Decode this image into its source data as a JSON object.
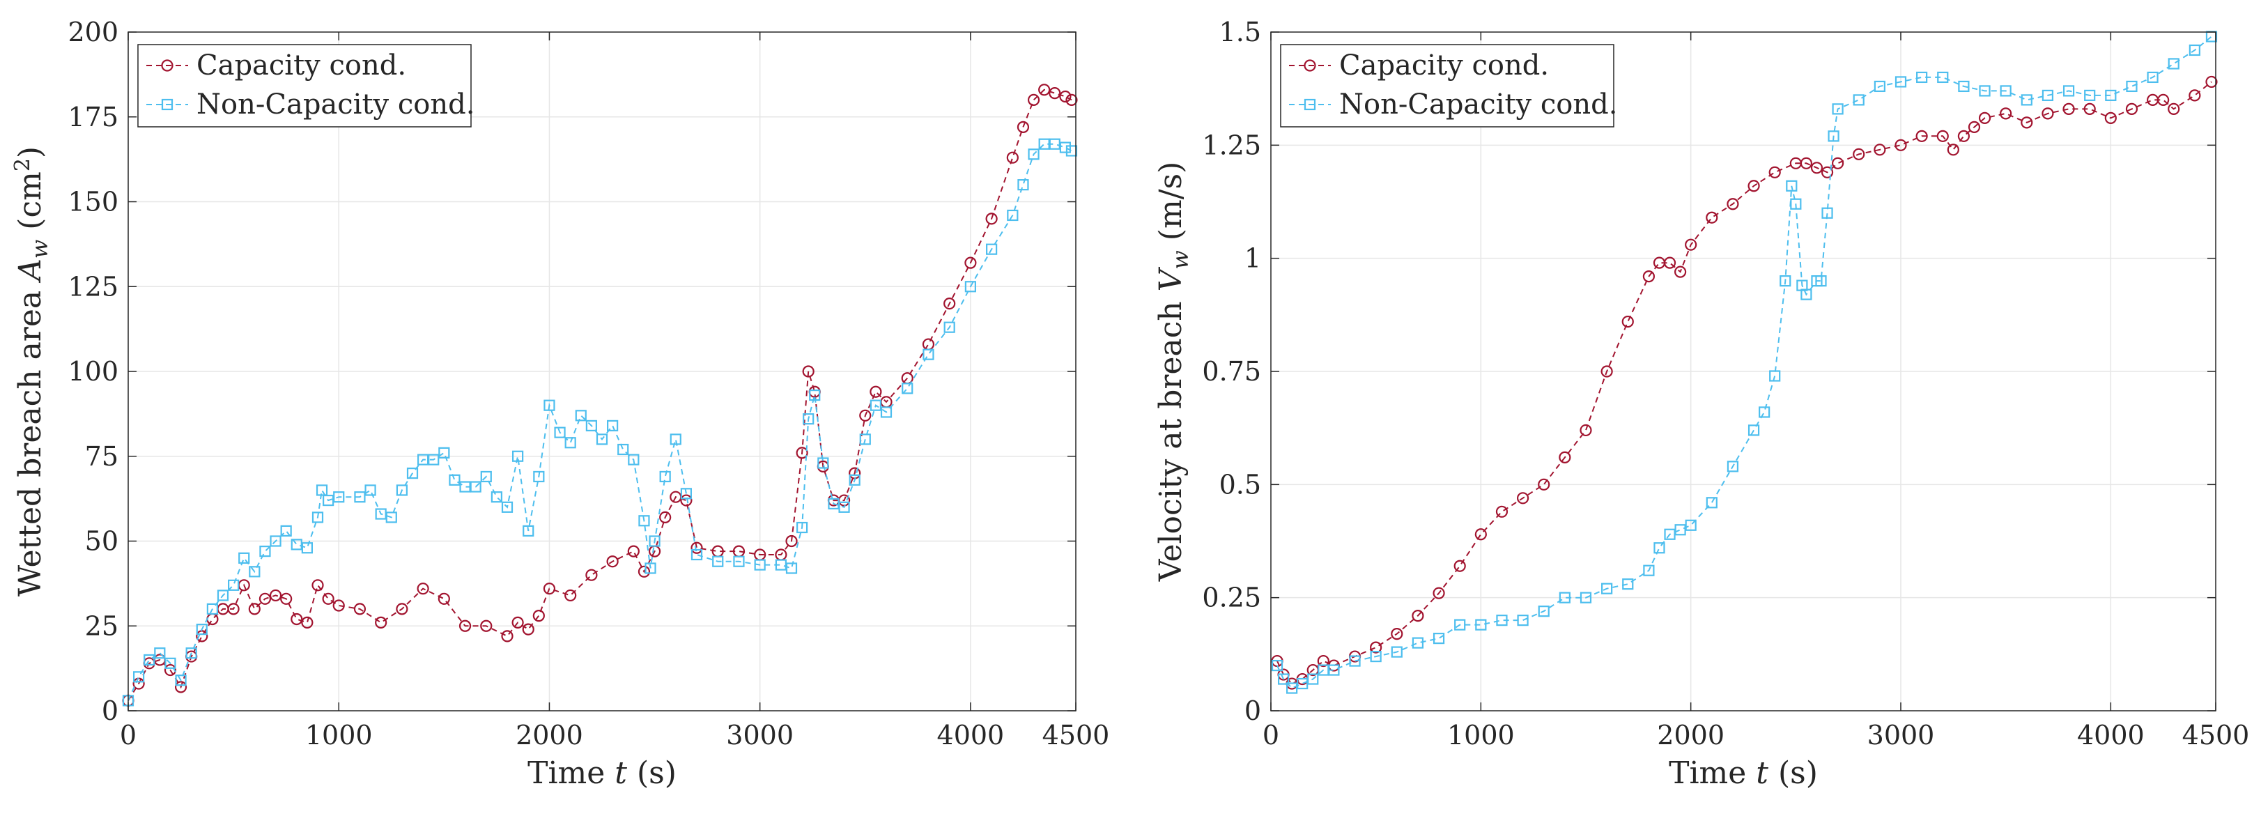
{
  "colors": {
    "capacity": "#a2142f",
    "non_capacity": "#4dbeee",
    "axis": "#262626",
    "grid": "#e6e6e6"
  },
  "chart_data": [
    {
      "type": "line",
      "xlabel": "Time",
      "xlabel_var": "t",
      "xlabel_unit": "(s)",
      "ylabel": "Wetted breach area",
      "ylabel_var": "A",
      "ylabel_sub": "w",
      "ylabel_unit_open": "(cm",
      "ylabel_unit_sup": "2",
      "ylabel_unit_close": ")",
      "xlim": [
        0,
        4500
      ],
      "ylim": [
        0,
        200
      ],
      "xticks": [
        0,
        1000,
        2000,
        3000,
        4000,
        4500
      ],
      "xtick_labels": [
        "0",
        "1000",
        "2000",
        "3000",
        "4000",
        "4500"
      ],
      "yticks": [
        0,
        25,
        50,
        75,
        100,
        125,
        150,
        175,
        200
      ],
      "ytick_labels": [
        "0",
        "25",
        "50",
        "75",
        "100",
        "125",
        "150",
        "175",
        "200"
      ],
      "grid": true,
      "legend_position": "top-left",
      "series": [
        {
          "name": "Capacity cond.",
          "marker": "circle",
          "x": [
            0,
            50,
            100,
            150,
            200,
            250,
            300,
            350,
            400,
            450,
            500,
            550,
            600,
            650,
            700,
            750,
            800,
            850,
            900,
            950,
            1000,
            1100,
            1200,
            1300,
            1400,
            1500,
            1600,
            1700,
            1800,
            1850,
            1900,
            1950,
            2000,
            2100,
            2200,
            2300,
            2400,
            2450,
            2500,
            2550,
            2600,
            2650,
            2700,
            2800,
            2900,
            3000,
            3100,
            3150,
            3200,
            3230,
            3260,
            3300,
            3350,
            3400,
            3450,
            3500,
            3550,
            3600,
            3700,
            3800,
            3900,
            4000,
            4100,
            4200,
            4250,
            4300,
            4350,
            4400,
            4450,
            4480
          ],
          "y": [
            3,
            8,
            14,
            15,
            12,
            7,
            16,
            22,
            27,
            30,
            30,
            37,
            30,
            33,
            34,
            33,
            27,
            26,
            37,
            33,
            31,
            30,
            26,
            30,
            36,
            33,
            25,
            25,
            22,
            26,
            24,
            28,
            36,
            34,
            40,
            44,
            47,
            41,
            47,
            57,
            63,
            62,
            48,
            47,
            47,
            46,
            46,
            50,
            76,
            100,
            94,
            72,
            62,
            62,
            70,
            87,
            94,
            91,
            98,
            108,
            120,
            132,
            145,
            163,
            172,
            180,
            183,
            182,
            181,
            180
          ]
        },
        {
          "name": "Non-Capacity cond.",
          "marker": "square",
          "x": [
            0,
            50,
            100,
            150,
            200,
            250,
            300,
            350,
            400,
            450,
            500,
            550,
            600,
            650,
            700,
            750,
            800,
            850,
            900,
            920,
            950,
            1000,
            1100,
            1150,
            1200,
            1250,
            1300,
            1350,
            1400,
            1450,
            1500,
            1550,
            1600,
            1650,
            1700,
            1750,
            1800,
            1850,
            1900,
            1950,
            2000,
            2050,
            2100,
            2150,
            2200,
            2250,
            2300,
            2350,
            2400,
            2450,
            2480,
            2500,
            2550,
            2600,
            2650,
            2700,
            2800,
            2900,
            3000,
            3100,
            3150,
            3200,
            3230,
            3260,
            3300,
            3350,
            3400,
            3450,
            3500,
            3550,
            3600,
            3700,
            3800,
            3900,
            4000,
            4100,
            4200,
            4250,
            4300,
            4350,
            4400,
            4450,
            4480
          ],
          "y": [
            3,
            10,
            15,
            17,
            14,
            9,
            17,
            24,
            30,
            34,
            37,
            45,
            41,
            47,
            50,
            53,
            49,
            48,
            57,
            65,
            62,
            63,
            63,
            65,
            58,
            57,
            65,
            70,
            74,
            74,
            76,
            68,
            66,
            66,
            69,
            63,
            60,
            75,
            53,
            69,
            90,
            82,
            79,
            87,
            84,
            80,
            84,
            77,
            74,
            56,
            42,
            50,
            69,
            80,
            64,
            46,
            44,
            44,
            43,
            43,
            42,
            54,
            86,
            93,
            73,
            61,
            60,
            68,
            80,
            90,
            88,
            95,
            105,
            113,
            125,
            136,
            146,
            155,
            164,
            167,
            167,
            166,
            165
          ]
        }
      ]
    },
    {
      "type": "line",
      "xlabel": "Time",
      "xlabel_var": "t",
      "xlabel_unit": "(s)",
      "ylabel": "Velocity at breach",
      "ylabel_var": "V",
      "ylabel_sub": "w",
      "ylabel_unit_open": "(m/s)",
      "ylabel_unit_sup": "",
      "ylabel_unit_close": "",
      "xlim": [
        0,
        4500
      ],
      "ylim": [
        0,
        1.5
      ],
      "xticks": [
        0,
        1000,
        2000,
        3000,
        4000,
        4500
      ],
      "xtick_labels": [
        "0",
        "1000",
        "2000",
        "3000",
        "4000",
        "4500"
      ],
      "yticks": [
        0,
        0.25,
        0.5,
        0.75,
        1,
        1.25,
        1.5
      ],
      "ytick_labels": [
        "0",
        "0.25",
        "0.5",
        "0.75",
        "1",
        "1.25",
        "1.5"
      ],
      "grid": true,
      "legend_position": "top-left",
      "series": [
        {
          "name": "Capacity cond.",
          "marker": "circle",
          "x": [
            30,
            60,
            100,
            150,
            200,
            250,
            300,
            400,
            500,
            600,
            700,
            800,
            900,
            1000,
            1100,
            1200,
            1300,
            1400,
            1500,
            1600,
            1700,
            1800,
            1850,
            1900,
            1950,
            2000,
            2100,
            2200,
            2300,
            2400,
            2500,
            2550,
            2600,
            2650,
            2700,
            2800,
            2900,
            3000,
            3100,
            3200,
            3250,
            3300,
            3350,
            3400,
            3500,
            3600,
            3700,
            3800,
            3900,
            4000,
            4100,
            4200,
            4250,
            4300,
            4400,
            4480
          ],
          "y": [
            0.11,
            0.08,
            0.06,
            0.07,
            0.09,
            0.11,
            0.1,
            0.12,
            0.14,
            0.17,
            0.21,
            0.26,
            0.32,
            0.39,
            0.44,
            0.47,
            0.5,
            0.56,
            0.62,
            0.75,
            0.86,
            0.96,
            0.99,
            0.99,
            0.97,
            1.03,
            1.09,
            1.12,
            1.16,
            1.19,
            1.21,
            1.21,
            1.2,
            1.19,
            1.21,
            1.23,
            1.24,
            1.25,
            1.27,
            1.27,
            1.24,
            1.27,
            1.29,
            1.31,
            1.32,
            1.3,
            1.32,
            1.33,
            1.33,
            1.31,
            1.33,
            1.35,
            1.35,
            1.33,
            1.36,
            1.39
          ]
        },
        {
          "name": "Non-Capacity cond.",
          "marker": "square",
          "x": [
            30,
            60,
            100,
            150,
            200,
            250,
            300,
            400,
            500,
            600,
            700,
            800,
            900,
            1000,
            1100,
            1200,
            1300,
            1400,
            1500,
            1600,
            1700,
            1800,
            1850,
            1900,
            1950,
            2000,
            2100,
            2200,
            2300,
            2350,
            2400,
            2450,
            2480,
            2500,
            2530,
            2550,
            2600,
            2620,
            2650,
            2680,
            2700,
            2800,
            2900,
            3000,
            3100,
            3200,
            3300,
            3400,
            3500,
            3600,
            3700,
            3800,
            3900,
            4000,
            4100,
            4200,
            4300,
            4400,
            4480
          ],
          "y": [
            0.1,
            0.07,
            0.05,
            0.06,
            0.07,
            0.09,
            0.09,
            0.11,
            0.12,
            0.13,
            0.15,
            0.16,
            0.19,
            0.19,
            0.2,
            0.2,
            0.22,
            0.25,
            0.25,
            0.27,
            0.28,
            0.31,
            0.36,
            0.39,
            0.4,
            0.41,
            0.46,
            0.54,
            0.62,
            0.66,
            0.74,
            0.95,
            1.16,
            1.12,
            0.94,
            0.92,
            0.95,
            0.95,
            1.1,
            1.27,
            1.33,
            1.35,
            1.38,
            1.39,
            1.4,
            1.4,
            1.38,
            1.37,
            1.37,
            1.35,
            1.36,
            1.37,
            1.36,
            1.36,
            1.38,
            1.4,
            1.43,
            1.46,
            1.49
          ]
        }
      ]
    }
  ]
}
